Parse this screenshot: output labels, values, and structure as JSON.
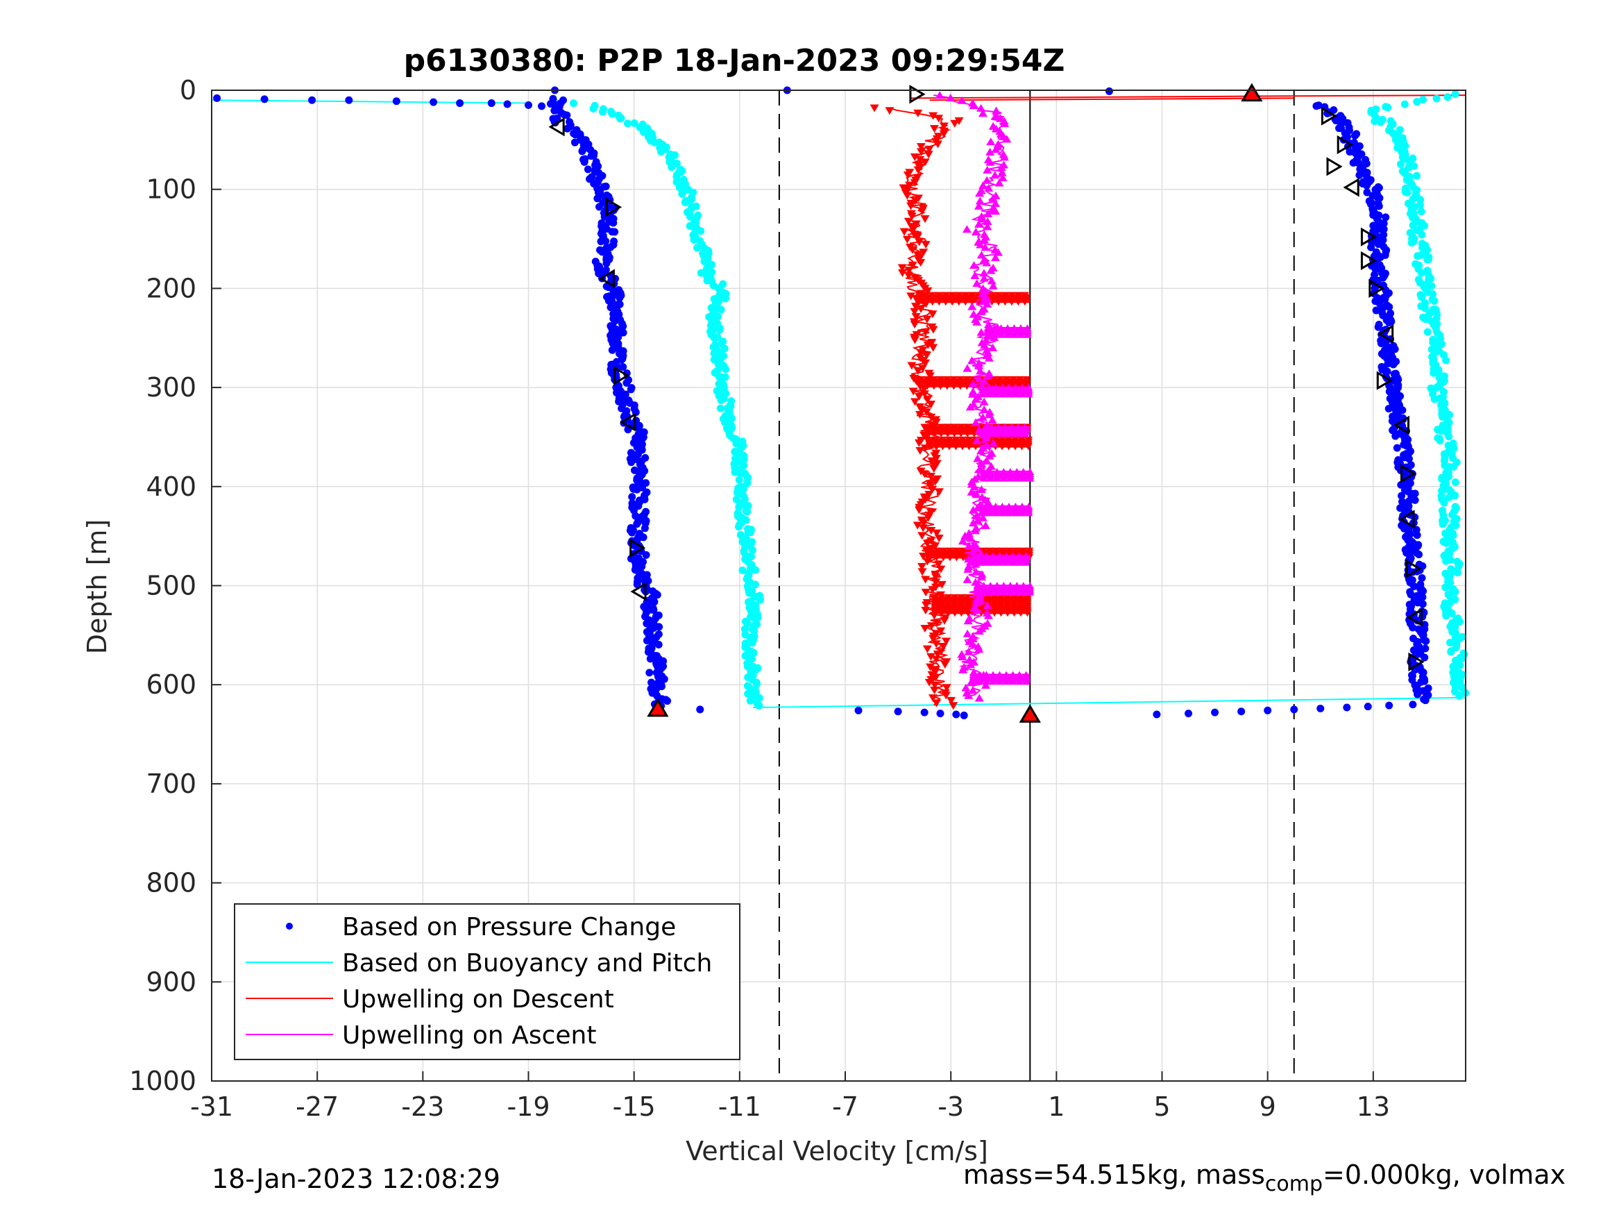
{
  "chart_data": {
    "type": "scatter",
    "title": "p6130380: P2P 18-Jan-2023 09:29:54Z",
    "xlabel": "Vertical Velocity [cm/s]",
    "ylabel": "Depth [m]",
    "xlim": [
      -31,
      16.5
    ],
    "ylim": [
      1000,
      0
    ],
    "y_reversed": true,
    "grid": true,
    "xticks": [
      -31,
      -27,
      -23,
      -19,
      -15,
      -11,
      -7,
      -3,
      1,
      5,
      9,
      13
    ],
    "yticks": [
      0,
      100,
      200,
      300,
      400,
      500,
      600,
      700,
      800,
      900,
      1000
    ],
    "legend_position": "bottom-left",
    "vertical_lines": [
      {
        "x": -9.5,
        "style": "dashed"
      },
      {
        "x": 0,
        "style": "solid",
        "ymin": 0,
        "ymax": 1000
      },
      {
        "x": 10,
        "style": "dashed"
      }
    ],
    "series": [
      {
        "name": "Based on Pressure Change",
        "style": "dots",
        "color": "#0000ff",
        "descent": {
          "y": [
            10,
            35,
            45,
            60,
            80,
            100,
            120,
            150,
            180,
            200,
            220,
            250,
            280,
            300,
            330,
            350,
            380,
            400,
            430,
            460,
            490,
            510,
            540,
            570,
            600,
            620
          ],
          "x": [
            -18.0,
            -17.7,
            -17.2,
            -16.8,
            -16.5,
            -16.3,
            -16.0,
            -16.0,
            -16.2,
            -15.8,
            -15.7,
            -15.6,
            -15.6,
            -15.4,
            -15.2,
            -14.8,
            -14.9,
            -14.8,
            -14.8,
            -14.9,
            -14.7,
            -14.4,
            -14.3,
            -14.2,
            -14.1,
            -14.0
          ]
        },
        "ascent": {
          "y": [
            615,
            600,
            580,
            550,
            520,
            480,
            450,
            420,
            390,
            360,
            330,
            300,
            280,
            250,
            220,
            200,
            180,
            150,
            120,
            100,
            80,
            60,
            40,
            25,
            15
          ],
          "x": [
            14.9,
            14.8,
            14.7,
            14.7,
            14.6,
            14.6,
            14.4,
            14.3,
            14.3,
            14.1,
            13.9,
            13.8,
            13.6,
            13.5,
            13.4,
            13.3,
            13.2,
            13.2,
            13.2,
            13.0,
            12.6,
            12.3,
            12.0,
            11.5,
            11.0
          ]
        },
        "transitions": {
          "y": [
            8,
            9,
            10,
            10,
            11,
            12,
            13,
            13,
            14,
            15,
            16,
            20,
            0,
            0,
            1,
            625,
            626,
            627,
            628,
            629,
            630,
            631,
            630,
            629,
            628,
            627,
            626,
            625,
            624,
            623,
            622,
            621,
            620
          ],
          "x": [
            -30.8,
            -29.0,
            -27.2,
            -25.8,
            -24.0,
            -22.6,
            -21.6,
            -20.4,
            -19.8,
            -19.0,
            -18.5,
            -18.0,
            -18.0,
            -9.2,
            3.0,
            -12.5,
            -6.5,
            -5.0,
            -4.0,
            -3.4,
            -2.8,
            -2.5,
            4.8,
            6.0,
            7.0,
            8.0,
            9.0,
            10.0,
            11.0,
            12.0,
            12.8,
            13.6,
            14.5
          ]
        }
      },
      {
        "name": "Based on Buoyancy and Pitch",
        "style": "line+dots",
        "color": "#00ffff",
        "descent": {
          "y": [
            10,
            15,
            25,
            40,
            60,
            80,
            100,
            130,
            160,
            190,
            200,
            230,
            260,
            290,
            320,
            340,
            360,
            400,
            440,
            480,
            510,
            540,
            570,
            600,
            620
          ],
          "x": [
            -19.0,
            -16.5,
            -15.8,
            -14.5,
            -13.8,
            -13.4,
            -13.0,
            -12.7,
            -12.4,
            -12.2,
            -11.6,
            -12.0,
            -11.8,
            -11.7,
            -11.5,
            -11.3,
            -11.0,
            -10.9,
            -10.8,
            -10.7,
            -10.4,
            -10.6,
            -10.6,
            -10.5,
            -10.4
          ]
        },
        "ascent": {
          "y": [
            615,
            600,
            580,
            550,
            520,
            480,
            460,
            430,
            400,
            380,
            350,
            320,
            300,
            270,
            250,
            220,
            200,
            180,
            150,
            120,
            90,
            60,
            40,
            20,
            5
          ],
          "x": [
            16.3,
            16.3,
            16.2,
            16.1,
            15.9,
            16.0,
            15.9,
            15.9,
            15.8,
            16.0,
            15.7,
            15.6,
            15.4,
            15.5,
            15.3,
            15.1,
            15.0,
            14.9,
            14.7,
            14.6,
            14.4,
            14.2,
            13.8,
            12.8,
            16.0
          ]
        },
        "guide_lines": {
          "descent_top": {
            "x": [
              -31,
              -19
            ],
            "y": [
              10,
              13
            ]
          },
          "bottom": {
            "x": [
              -10.5,
              16.5
            ],
            "y": [
              623,
              613
            ]
          }
        }
      },
      {
        "name": "Upwelling on Descent",
        "style": "line+triangle-down",
        "color": "#ff0000",
        "y": [
          18,
          30,
          45,
          60,
          80,
          100,
          120,
          140,
          160,
          180,
          200,
          220,
          250,
          280,
          300,
          320,
          350,
          380,
          400,
          430,
          460,
          490,
          510,
          540,
          560,
          580,
          600,
          620
        ],
        "x": [
          -5.5,
          -3.0,
          -3.5,
          -4.0,
          -4.3,
          -4.5,
          -4.2,
          -4.4,
          -4.2,
          -4.5,
          -4.3,
          -4.0,
          -4.0,
          -4.2,
          -4.1,
          -4.0,
          -3.8,
          -3.9,
          -3.8,
          -3.9,
          -3.8,
          -3.7,
          -3.6,
          -3.6,
          -3.5,
          -3.5,
          -3.6,
          -3.3
        ],
        "flare_depths": [
          207,
          292,
          340,
          353,
          465,
          512,
          521
        ],
        "surface_spike": {
          "x": [
            -4.5,
            8.5,
            16.5
          ],
          "y": [
            8,
            6,
            5
          ]
        }
      },
      {
        "name": "Upwelling on Ascent",
        "style": "line+triangle-up",
        "color": "#ff00ff",
        "y": [
          615,
          600,
          580,
          560,
          540,
          520,
          500,
          480,
          460,
          440,
          420,
          400,
          380,
          360,
          340,
          320,
          300,
          280,
          260,
          240,
          220,
          200,
          180,
          160,
          140,
          120,
          100,
          80,
          60,
          40,
          20,
          5
        ],
        "x": [
          -2.2,
          -2.0,
          -2.3,
          -2.2,
          -2.0,
          -1.9,
          -2.0,
          -2.1,
          -2.2,
          -2.0,
          -1.8,
          -1.9,
          -1.7,
          -1.8,
          -1.7,
          -1.9,
          -1.8,
          -2.0,
          -1.7,
          -1.6,
          -1.9,
          -1.7,
          -1.8,
          -1.5,
          -2.0,
          -1.6,
          -1.5,
          -1.3,
          -1.2,
          -1.0,
          -1.5,
          -3.5
        ],
        "flare_depths": [
          240,
          300,
          340,
          385,
          420,
          470,
          500,
          590
        ]
      }
    ],
    "markers": {
      "open_triangles": [
        {
          "x": -17.9,
          "y": 37,
          "dir": "left"
        },
        {
          "x": -15.8,
          "y": 118,
          "dir": "right"
        },
        {
          "x": -16.0,
          "y": 190,
          "dir": "left"
        },
        {
          "x": -15.5,
          "y": 288,
          "dir": "right"
        },
        {
          "x": -15.2,
          "y": 335,
          "dir": "left"
        },
        {
          "x": -14.9,
          "y": 462,
          "dir": "right"
        },
        {
          "x": -14.8,
          "y": 506,
          "dir": "left"
        },
        {
          "x": -4.3,
          "y": 4,
          "dir": "right"
        },
        {
          "x": 11.3,
          "y": 26,
          "dir": "right"
        },
        {
          "x": 11.9,
          "y": 55,
          "dir": "right"
        },
        {
          "x": 11.5,
          "y": 77,
          "dir": "right"
        },
        {
          "x": 12.2,
          "y": 98,
          "dir": "left"
        },
        {
          "x": 12.8,
          "y": 148,
          "dir": "right"
        },
        {
          "x": 12.8,
          "y": 172,
          "dir": "right"
        },
        {
          "x": 13.1,
          "y": 200,
          "dir": "right"
        },
        {
          "x": 13.5,
          "y": 246,
          "dir": "left"
        },
        {
          "x": 13.4,
          "y": 293,
          "dir": "right"
        },
        {
          "x": 14.1,
          "y": 338,
          "dir": "left"
        },
        {
          "x": 14.3,
          "y": 387,
          "dir": "right"
        },
        {
          "x": 14.3,
          "y": 433,
          "dir": "left"
        },
        {
          "x": 14.5,
          "y": 483,
          "dir": "right"
        },
        {
          "x": 14.6,
          "y": 532,
          "dir": "left"
        },
        {
          "x": 14.6,
          "y": 577,
          "dir": "right"
        }
      ],
      "filled_triangles": [
        {
          "x": -14.1,
          "y": 624,
          "dir": "up",
          "color": "#ff0000"
        },
        {
          "x": 8.4,
          "y": 3,
          "dir": "up",
          "color": "#ff0000"
        },
        {
          "x": 0,
          "y": 630,
          "dir": "up",
          "color": "#ff0000"
        }
      ]
    },
    "colors": {
      "pressure": "#0000ff",
      "buoyancy": "#00ffff",
      "descent": "#ff0000",
      "ascent": "#ff00ff",
      "grid": "#dedede",
      "axes": "#262626"
    }
  },
  "footer": {
    "timestamp": "18-Jan-2023 12:08:29",
    "mass_pre": "mass=54.515kg, mass",
    "mass_sub": "comp",
    "mass_post": "=0.000kg, volmax"
  }
}
